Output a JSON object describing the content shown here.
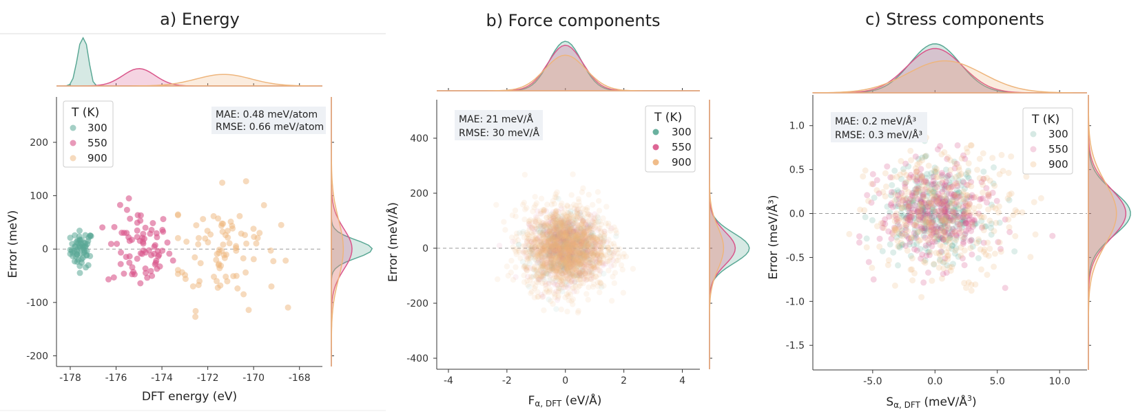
{
  "colors": {
    "300": "#5aa895",
    "550": "#d9558a",
    "900": "#eeb57c",
    "axis": "#333333",
    "zeroline": "#999999",
    "statbox_bg": "#eef1f5"
  },
  "legend": {
    "title": "T (K)",
    "items": [
      "300",
      "550",
      "900"
    ]
  },
  "chart_data": [
    {
      "type": "scatter",
      "title": "a) Energy",
      "xlabel": "DFT energy (eV)",
      "ylabel": "Error (meV)",
      "xlim": [
        -178.6,
        -167.0
      ],
      "ylim": [
        -220,
        285
      ],
      "xticks": [
        -178,
        -176,
        -174,
        -172,
        -170,
        -168
      ],
      "yticks": [
        -200,
        -100,
        0,
        100,
        200
      ],
      "stats": [
        "MAE: 0.48 meV/atom",
        "RMSE: 0.66 meV/atom"
      ],
      "legend_position": "top-left",
      "stats_position": "top-right",
      "marginal_top": true,
      "marginal_right": true,
      "series": [
        {
          "name": "300",
          "point_alpha": 0.55,
          "x_range": [
            -178.0,
            -176.8
          ],
          "x_center": -177.5,
          "x_sd": 0.25,
          "y_sd": 17,
          "count": 60
        },
        {
          "name": "550",
          "point_alpha": 0.6,
          "x_range": [
            -176.6,
            -173.5
          ],
          "x_center": -175.0,
          "x_sd": 0.7,
          "y_sd": 38,
          "count": 75
        },
        {
          "name": "900",
          "point_alpha": 0.5,
          "x_range": [
            -173.3,
            -168.5
          ],
          "x_center": -171.3,
          "x_sd": 1.2,
          "y_sd": 55,
          "count": 85
        }
      ]
    },
    {
      "type": "scatter",
      "title": "b) Force components",
      "xlabel": "F",
      "xlabel_sub": "α, DFT",
      "xlabel_unit": " (eV/Å)",
      "ylabel": "Error (meV/Å)",
      "xlim": [
        -4.4,
        4.6
      ],
      "ylim": [
        -440,
        540
      ],
      "xticks": [
        -4,
        -2,
        0,
        2,
        4
      ],
      "yticks": [
        -400,
        -200,
        0,
        200,
        400
      ],
      "stats": [
        "MAE: 21 meV/Å",
        "RMSE: 30 meV/Å"
      ],
      "legend_position": "top-right",
      "stats_position": "top-left",
      "marginal_top": true,
      "marginal_right": true,
      "series": [
        {
          "name": "300",
          "point_alpha": 0.08,
          "x_center": 0,
          "x_sd": 0.55,
          "y_sd": 55,
          "count": 500
        },
        {
          "name": "550",
          "point_alpha": 0.08,
          "x_center": 0,
          "x_sd": 0.6,
          "y_sd": 60,
          "count": 500
        },
        {
          "name": "900",
          "point_alpha": 0.12,
          "x_center": 0,
          "x_sd": 0.7,
          "y_sd": 75,
          "count": 1600
        }
      ]
    },
    {
      "type": "scatter",
      "title": "c) Stress components",
      "xlabel": "S",
      "xlabel_sub": "α, DFT",
      "xlabel_unit": " (meV/Å",
      "xlabel_sup": "3",
      "xlabel_unit_end": ")",
      "ylabel": "Error (meV/Å³)",
      "xlim": [
        -9.8,
        12.2
      ],
      "ylim": [
        -1.78,
        1.35
      ],
      "xticks": [
        -5,
        0,
        5,
        10
      ],
      "yticks": [
        -1.5,
        -1.0,
        -0.5,
        0.0,
        0.5,
        1.0
      ],
      "stats": [
        "MAE: 0.2 meV/Å³",
        "RMSE: 0.3 meV/Å³"
      ],
      "legend_position": "top-right",
      "stats_position": "top-left",
      "marginal_top": true,
      "marginal_right": true,
      "series": [
        {
          "name": "300",
          "point_alpha": 0.2,
          "x_center": 0,
          "x_sd": 2.0,
          "y_sd": 0.25,
          "count": 330
        },
        {
          "name": "550",
          "point_alpha": 0.25,
          "x_center": 0,
          "x_sd": 2.2,
          "y_sd": 0.28,
          "count": 330
        },
        {
          "name": "900",
          "point_alpha": 0.22,
          "x_center": 0.8,
          "x_sd": 3.0,
          "y_sd": 0.35,
          "count": 330
        }
      ]
    }
  ]
}
